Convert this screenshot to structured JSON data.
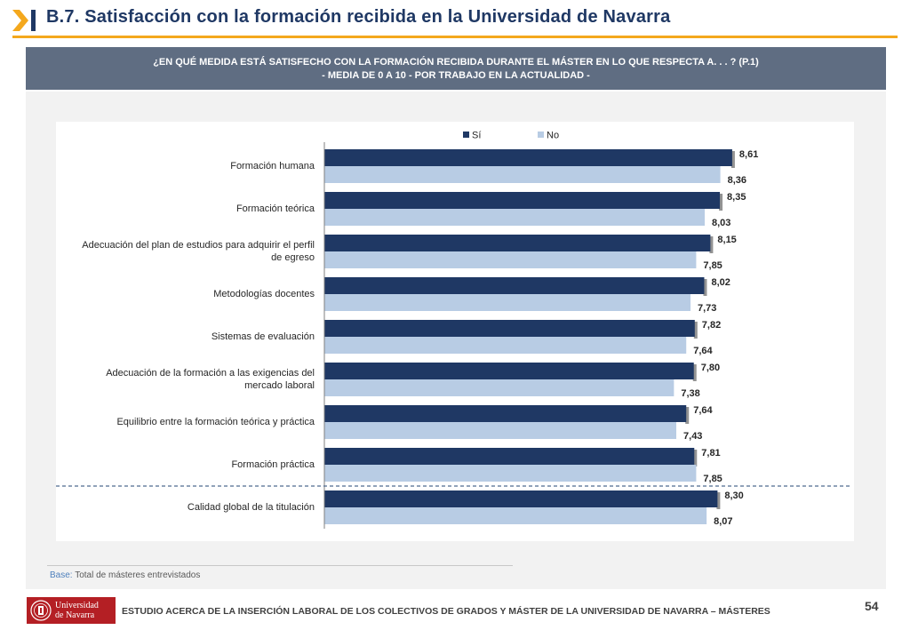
{
  "header": {
    "title": "B.7. Satisfacción con la formación recibida en la Universidad de Navarra",
    "accent_color": "#f4a81d",
    "title_color": "#1f3864"
  },
  "question": {
    "line1": "¿EN QUÉ MEDIDA ESTÁ SATISFECHO CON LA FORMACIÓN RECIBIDA DURANTE EL MÁSTER EN LO QUE RESPECTA A. . . ? (P.1)",
    "line2": "- MEDIA DE 0 A 10 - POR TRABAJO EN LA ACTUALIDAD -"
  },
  "chart_data": {
    "type": "bar",
    "orientation": "horizontal",
    "categories": [
      "Formación humana",
      "Formación teórica",
      "Adecuación del plan de estudios para adquirir el perfil de egreso",
      "Metodologías docentes",
      "Sistemas de evaluación",
      "Adecuación de la formación a las exigencias del mercado laboral",
      "Equilibrio entre la formación teórica y práctica",
      "Formación práctica",
      "Calidad global de la titulación"
    ],
    "category_lines": [
      [
        "Formación humana"
      ],
      [
        "Formación teórica"
      ],
      [
        "Adecuación del plan de estudios para adquirir el perfil",
        "de egreso"
      ],
      [
        "Metodologías docentes"
      ],
      [
        "Sistemas de evaluación"
      ],
      [
        "Adecuación de la formación a las exigencias del",
        "mercado laboral"
      ],
      [
        "Equilibrio entre la formación teórica y práctica"
      ],
      [
        "Formación práctica"
      ],
      [
        "Calidad global de la titulación"
      ]
    ],
    "series": [
      {
        "name": "Sí",
        "color": "#1f3864",
        "values": [
          8.61,
          8.35,
          8.15,
          8.02,
          7.82,
          7.8,
          7.64,
          7.81,
          8.3
        ],
        "labels": [
          "8,61",
          "8,35",
          "8,15",
          "8,02",
          "7,82",
          "7,80",
          "7,64",
          "7,81",
          "8,30"
        ]
      },
      {
        "name": "No",
        "color": "#b8cce4",
        "values": [
          8.36,
          8.03,
          7.85,
          7.73,
          7.64,
          7.38,
          7.43,
          7.85,
          8.07
        ],
        "labels": [
          "8,36",
          "8,03",
          "7,85",
          "7,73",
          "7,64",
          "7,38",
          "7,43",
          "7,85",
          "8,07"
        ]
      }
    ],
    "xlim": [
      0,
      10
    ],
    "legend_position": "top-center",
    "separator_before_last": true
  },
  "footer": {
    "base_label": "Base:",
    "base_text": "Total de másteres entrevistados",
    "logo_line1": "Universidad",
    "logo_line2": "de Navarra",
    "study_text": "ESTUDIO ACERCA DE LA INSERCIÓN LABORAL DE LOS COLECTIVOS DE GRADOS Y MÁSTER DE LA UNIVERSIDAD DE NAVARRA – MÁSTERES",
    "page_number": "54"
  }
}
